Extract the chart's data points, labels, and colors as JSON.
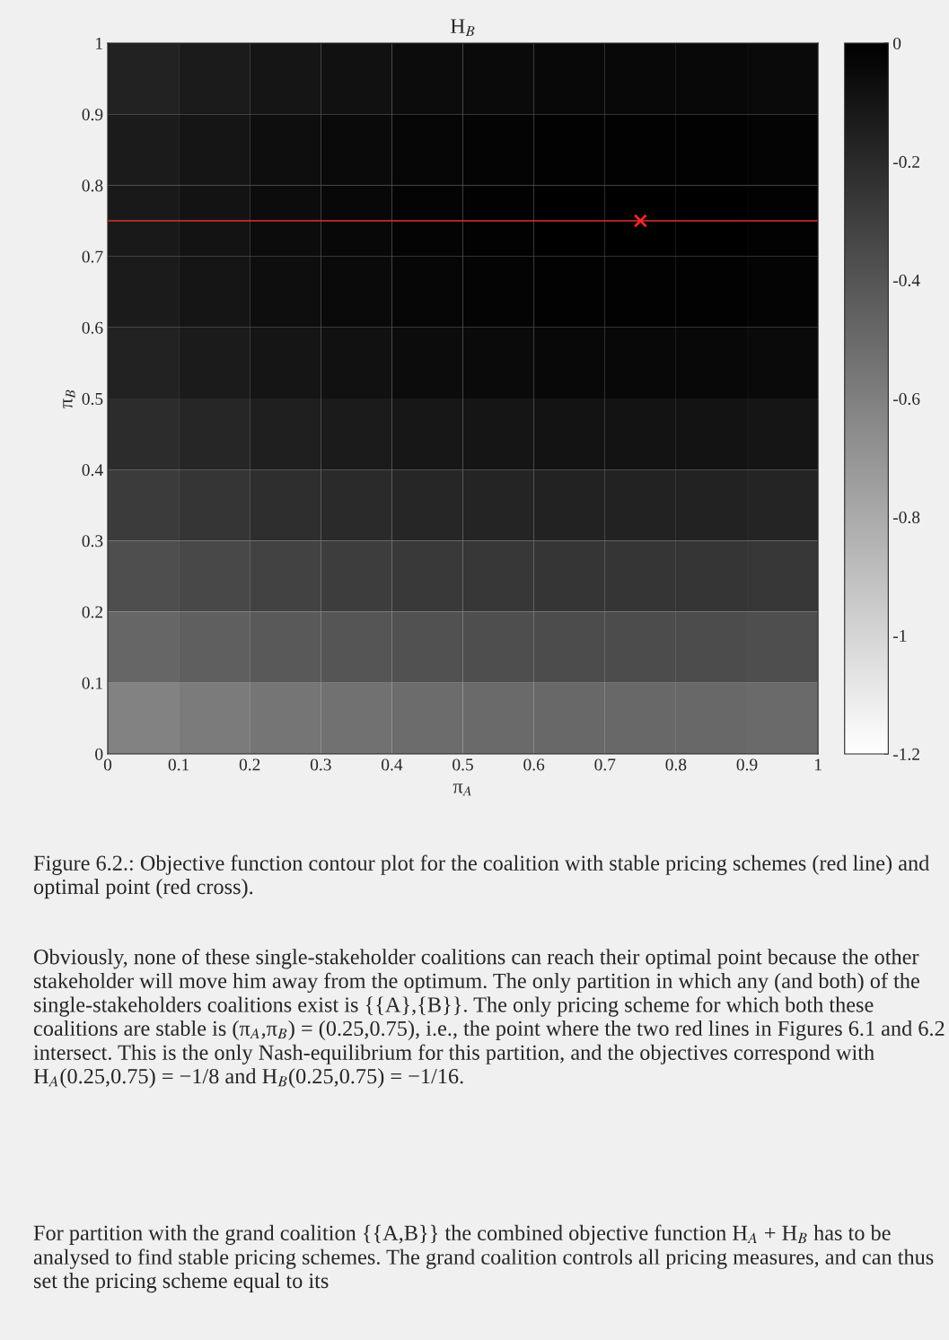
{
  "chart_data": {
    "type": "heatmap",
    "title": "H$_{B}$",
    "xlabel": "π$_{A}$",
    "ylabel": "π$_{B}$",
    "cells": [
      [
        -0.16,
        -0.13,
        -0.1,
        -0.08,
        -0.06,
        -0.05,
        -0.04,
        -0.04,
        -0.04,
        -0.05
      ],
      [
        -0.13,
        -0.1,
        -0.07,
        -0.05,
        -0.03,
        -0.02,
        -0.01,
        -0.01,
        -0.01,
        -0.02
      ],
      [
        -0.12,
        -0.09,
        -0.06,
        -0.04,
        -0.02,
        -0.01,
        0,
        0,
        0,
        -0.01
      ],
      [
        -0.13,
        -0.1,
        -0.07,
        -0.05,
        -0.03,
        -0.02,
        -0.01,
        -0.01,
        -0.01,
        -0.02
      ],
      [
        -0.16,
        -0.13,
        -0.1,
        -0.08,
        -0.06,
        -0.05,
        -0.04,
        -0.04,
        -0.04,
        -0.05
      ],
      [
        -0.21,
        -0.18,
        -0.15,
        -0.13,
        -0.11,
        -0.1,
        -0.09,
        -0.09,
        -0.09,
        -0.1
      ],
      [
        -0.28,
        -0.25,
        -0.22,
        -0.2,
        -0.18,
        -0.17,
        -0.16,
        -0.16,
        -0.16,
        -0.17
      ],
      [
        -0.37,
        -0.34,
        -0.31,
        -0.29,
        -0.27,
        -0.26,
        -0.25,
        -0.25,
        -0.25,
        -0.26
      ],
      [
        -0.48,
        -0.45,
        -0.42,
        -0.4,
        -0.38,
        -0.37,
        -0.36,
        -0.36,
        -0.36,
        -0.37
      ],
      [
        -0.61,
        -0.58,
        -0.55,
        -0.53,
        -0.51,
        -0.5,
        -0.49,
        -0.49,
        -0.49,
        -0.5
      ]
    ],
    "clim": [
      -1.2,
      0
    ],
    "cticks": [
      0,
      {
        "value": -0.2,
        "label": "-0.2"
      },
      {
        "value": -0.4,
        "label": "-0.4"
      },
      {
        "value": -0.6,
        "label": "-0.6"
      },
      {
        "value": -0.8,
        "label": "-0.8"
      },
      {
        "value": -1,
        "label": "-1"
      },
      {
        "value": -1.2,
        "label": "-1.2"
      }
    ],
    "xlim": [
      0,
      1
    ],
    "ylim": [
      0,
      1
    ],
    "xticks": [
      0,
      0.1,
      0.2,
      0.3,
      0.4,
      0.5,
      0.6,
      0.7,
      0.8,
      0.9,
      1
    ],
    "yticks": [
      0,
      0.1,
      0.2,
      0.3,
      0.4,
      0.5,
      0.6,
      0.7,
      0.8,
      0.9,
      1
    ],
    "ref_lines": [
      {
        "axis": "y",
        "value": 0.75,
        "color": "#e03030"
      }
    ],
    "series": [
      {
        "type": "scatter",
        "x": [
          0.75
        ],
        "values": [
          0.75
        ],
        "color": "#ff2020",
        "marker": "cross"
      }
    ],
    "annotations": [
      "Figure 6.2.: Objective function contour plot for the coalition with stable pricing schemes (red line) and optimal point (red cross).",
      "Obviously, none of these single-stakeholder coalitions can reach their optimal point because the other stakeholder will move him away from the optimum. The only partition in which any (and both) of the single-stakeholders coalitions exist is {{A},{B}}. The only pricing scheme for which both these coalitions are stable is (π$_{A}$,π$_{B}$) = (0.25,0.75), i.e., the point where the two red lines in Figures 6.1 and 6.2 intersect. This is the only Nash-equilibrium for this partition, and the objectives correspond with H$_{A}$(0.25,0.75) = −1/8 and H$_{B}$(0.25,0.75) = −1/16.",
      "For partition with the grand coalition {{A,B}} the combined objective function H$_{A}$ + H$_{B}$ has to be analysed to find stable pricing schemes. The grand coalition controls all pricing measures, and can thus set the pricing scheme equal to its"
    ]
  }
}
